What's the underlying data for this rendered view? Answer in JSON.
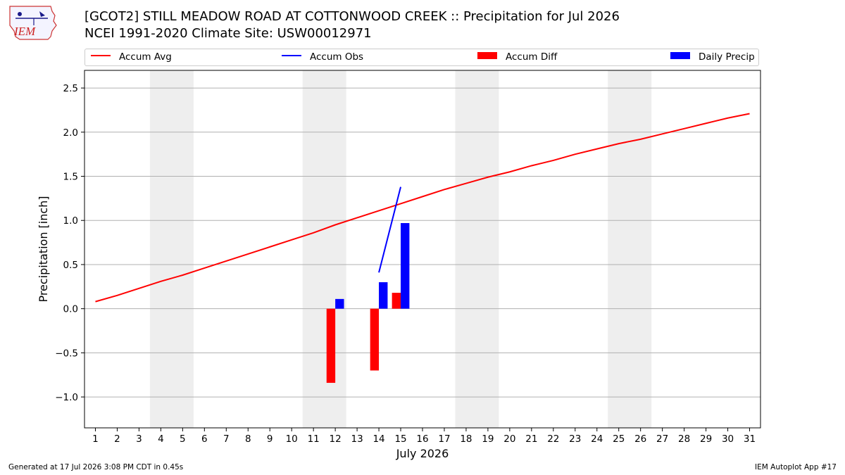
{
  "logo": {
    "text": "IEM"
  },
  "header": {
    "title": "[GCOT2] STILL MEADOW ROAD AT COTTONWOOD CREEK :: Precipitation for Jul 2026",
    "subtitle": "NCEI 1991-2020 Climate Site: USW00012971"
  },
  "legend": {
    "items": [
      {
        "label": "Accum Avg",
        "kind": "line",
        "color": "#ff0000"
      },
      {
        "label": "Accum Obs",
        "kind": "line",
        "color": "#0000ff"
      },
      {
        "label": "Accum Diff",
        "kind": "bar",
        "color": "#ff0000"
      },
      {
        "label": "Daily Precip",
        "kind": "bar",
        "color": "#0000ff"
      }
    ]
  },
  "chart_data": {
    "type": "bar",
    "xlabel": "July 2026",
    "ylabel": "Precipitation [inch]",
    "xlim": [
      0.5,
      31.5
    ],
    "ylim": [
      -1.35,
      2.7
    ],
    "yticks": [
      -1.0,
      -0.5,
      0.0,
      0.5,
      1.0,
      1.5,
      2.0,
      2.5
    ],
    "ytick_labels": [
      "−1.0",
      "−0.5",
      "0.0",
      "0.5",
      "1.0",
      "1.5",
      "2.0",
      "2.5"
    ],
    "x_ticks": [
      1,
      2,
      3,
      4,
      5,
      6,
      7,
      8,
      9,
      10,
      11,
      12,
      13,
      14,
      15,
      16,
      17,
      18,
      19,
      20,
      21,
      22,
      23,
      24,
      25,
      26,
      27,
      28,
      29,
      30,
      31
    ],
    "grid": "horizontal",
    "weekend_shading": [
      [
        3.5,
        5.5
      ],
      [
        10.5,
        12.5
      ],
      [
        17.5,
        19.5
      ],
      [
        24.5,
        26.5
      ]
    ],
    "shading_color": "#eeeeee",
    "series": [
      {
        "name": "Accum Avg",
        "type": "line",
        "color": "#ff0000",
        "x": [
          1,
          2,
          3,
          4,
          5,
          6,
          7,
          8,
          9,
          10,
          11,
          12,
          13,
          14,
          15,
          16,
          17,
          18,
          19,
          20,
          21,
          22,
          23,
          24,
          25,
          26,
          27,
          28,
          29,
          30,
          31
        ],
        "values": [
          0.08,
          0.15,
          0.23,
          0.31,
          0.38,
          0.46,
          0.54,
          0.62,
          0.7,
          0.78,
          0.86,
          0.95,
          1.03,
          1.11,
          1.19,
          1.27,
          1.35,
          1.42,
          1.49,
          1.55,
          1.62,
          1.68,
          1.75,
          1.81,
          1.87,
          1.92,
          1.98,
          2.04,
          2.1,
          2.16,
          2.21
        ]
      },
      {
        "name": "Accum Obs",
        "type": "line",
        "color": "#0000ff",
        "x": [
          14,
          15
        ],
        "values": [
          0.41,
          1.38
        ]
      },
      {
        "name": "Accum Diff",
        "type": "bar",
        "color": "#ff0000",
        "x": [
          12,
          14,
          15
        ],
        "values": [
          -0.84,
          -0.7,
          0.18
        ]
      },
      {
        "name": "Daily Precip",
        "type": "bar",
        "color": "#0000ff",
        "x": [
          12,
          14,
          15
        ],
        "values": [
          0.11,
          0.3,
          0.97
        ]
      }
    ]
  },
  "footer": {
    "left": "Generated at 17 Jul 2026 3:08 PM CDT in 0.45s",
    "right": "IEM Autoplot App #17"
  }
}
